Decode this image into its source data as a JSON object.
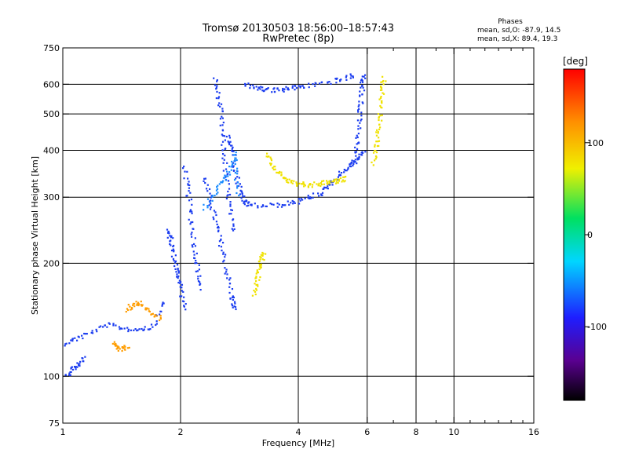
{
  "chart_data": {
    "type": "scatter",
    "title": "Tromsø 20130503 18:56:00–18:57:43",
    "subtitle": "RwPretec (8p)",
    "xlabel": "Frequency [MHz]",
    "ylabel": "Stationary phase Virtual Height [km]",
    "x_scale": "log",
    "y_scale": "log",
    "xlim": [
      1,
      16
    ],
    "ylim": [
      75,
      750
    ],
    "x_ticks": [
      1,
      2,
      4,
      6,
      8,
      10,
      16
    ],
    "x_minor_ticks": [
      7,
      9,
      11,
      12,
      13,
      14,
      15
    ],
    "y_ticks": [
      75,
      100,
      200,
      300,
      400,
      500,
      600,
      750
    ],
    "grid": true,
    "phase_box": {
      "title": "Phases",
      "line1": "mean, sd,O: -87.9, 14.5",
      "line2": "mean, sd,X:  89.4, 19.3"
    },
    "colorbar": {
      "label": "[deg]",
      "range": [
        -180,
        180
      ],
      "ticks": [
        100,
        0,
        -100
      ],
      "colormap": "rainbow (black → purple → blue → cyan → green → yellow → orange → red)"
    },
    "series": [
      {
        "phase_deg": -95,
        "color": "#1a3cf0",
        "traces": [
          [
            1.0,
            122,
            1.12,
            128,
            1.3,
            137,
            1.5,
            133,
            1.7,
            135,
            1.82,
            160
          ],
          [
            1.02,
            100,
            1.08,
            106,
            1.14,
            112
          ],
          [
            1.85,
            245,
            1.9,
            225,
            1.95,
            195,
            2.0,
            175,
            2.05,
            150
          ],
          [
            2.05,
            360,
            2.1,
            300,
            2.15,
            240,
            2.2,
            200,
            2.25,
            170
          ],
          [
            2.3,
            340,
            2.4,
            285,
            2.5,
            240,
            2.6,
            200,
            2.7,
            165,
            2.75,
            150
          ],
          [
            2.45,
            620,
            2.52,
            530,
            2.56,
            440,
            2.6,
            360,
            2.66,
            290,
            2.72,
            240
          ],
          [
            2.66,
            435,
            2.73,
            395,
            2.8,
            330,
            2.9,
            295,
            3.0,
            285,
            3.5,
            285,
            4.0,
            292,
            4.5,
            305,
            4.8,
            325,
            5.2,
            350,
            5.6,
            375,
            5.9,
            400
          ],
          [
            2.9,
            600,
            3.2,
            585,
            3.5,
            578,
            3.8,
            585,
            4.2,
            595,
            5.0,
            612,
            5.6,
            635
          ],
          [
            5.5,
            360,
            5.65,
            420,
            5.75,
            500,
            5.82,
            580,
            5.88,
            640
          ]
        ]
      },
      {
        "phase_deg": -60,
        "color": "#1a8cff",
        "traces": [
          [
            2.3,
            280,
            2.5,
            320,
            2.65,
            345,
            2.75,
            390,
            2.8,
            300
          ]
        ]
      },
      {
        "phase_deg": 110,
        "color": "#f0e200",
        "traces": [
          [
            3.3,
            390,
            3.5,
            355,
            3.7,
            335,
            4.0,
            325,
            4.3,
            322,
            4.7,
            328,
            5.0,
            330,
            5.3,
            338
          ],
          [
            3.08,
            165,
            3.15,
            185,
            3.2,
            200,
            3.28,
            215
          ],
          [
            6.2,
            370,
            6.35,
            420,
            6.45,
            480,
            6.55,
            560,
            6.62,
            630
          ]
        ]
      },
      {
        "phase_deg": 140,
        "color": "#ff9d00",
        "traces": [
          [
            1.45,
            150,
            1.55,
            158,
            1.65,
            150,
            1.8,
            142
          ],
          [
            1.35,
            122,
            1.4,
            118,
            1.47,
            120
          ]
        ]
      }
    ]
  }
}
